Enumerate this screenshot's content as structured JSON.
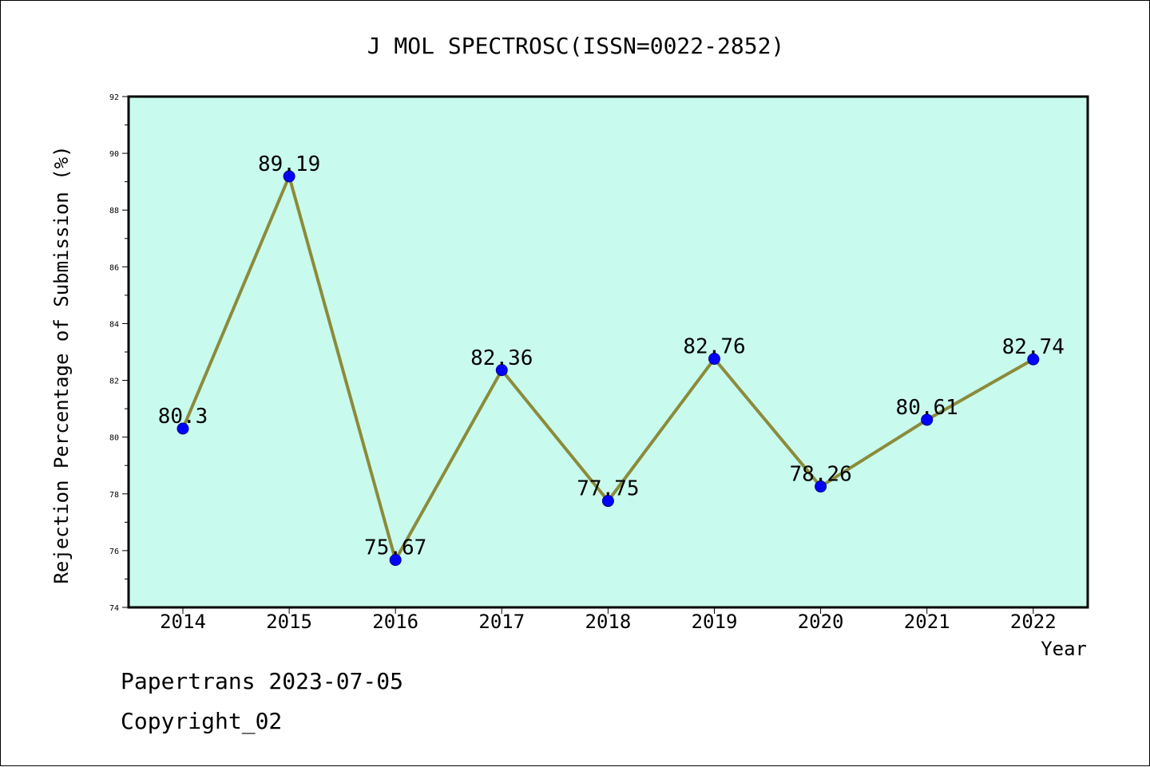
{
  "chart_data": {
    "type": "line",
    "title": "J MOL SPECTROSC(ISSN=0022-2852)",
    "xlabel": "Year",
    "ylabel": "Rejection Percentage of Submission (%)",
    "categories": [
      "2014",
      "2015",
      "2016",
      "2017",
      "2018",
      "2019",
      "2020",
      "2021",
      "2022"
    ],
    "values": [
      80.3,
      89.19,
      75.67,
      82.36,
      77.75,
      82.76,
      78.26,
      80.61,
      82.74
    ],
    "data_labels": [
      "80.3",
      "89.19",
      "75.67",
      "82.36",
      "77.75",
      "82.76",
      "78.26",
      "80.61",
      "82.74"
    ],
    "ylim": [
      74,
      92
    ],
    "yticks": [
      "74",
      "76",
      "78",
      "80",
      "82",
      "84",
      "86",
      "88",
      "90",
      "92"
    ],
    "grid": false,
    "colors": {
      "plot_background": "#c8fbed",
      "line": "#8b8b3b",
      "marker": "#0000ff"
    }
  },
  "footer": {
    "source": "Papertrans 2023-07-05",
    "copyright": "Copyright_02"
  }
}
